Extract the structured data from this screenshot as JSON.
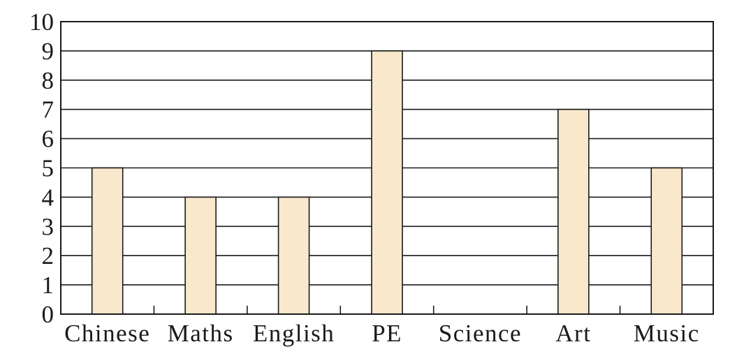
{
  "chart_data": {
    "type": "bar",
    "title": "",
    "xlabel": "",
    "ylabel": "",
    "categories": [
      "Chinese",
      "Maths",
      "English",
      "PE",
      "Science",
      "Art",
      "Music"
    ],
    "values": [
      5,
      4,
      4,
      9,
      0,
      7,
      5
    ],
    "ylim": [
      0,
      10
    ],
    "yticks": [
      "0",
      "1",
      "2",
      "3",
      "4",
      "5",
      "6",
      "7",
      "8",
      "9",
      "10"
    ],
    "grid": true,
    "legend": "none",
    "colors": {
      "bar_fill": "#f9e8cc",
      "bar_stroke": "#1a1a1a",
      "grid": "#1a1a1a",
      "text": "#1a1a1a"
    }
  }
}
